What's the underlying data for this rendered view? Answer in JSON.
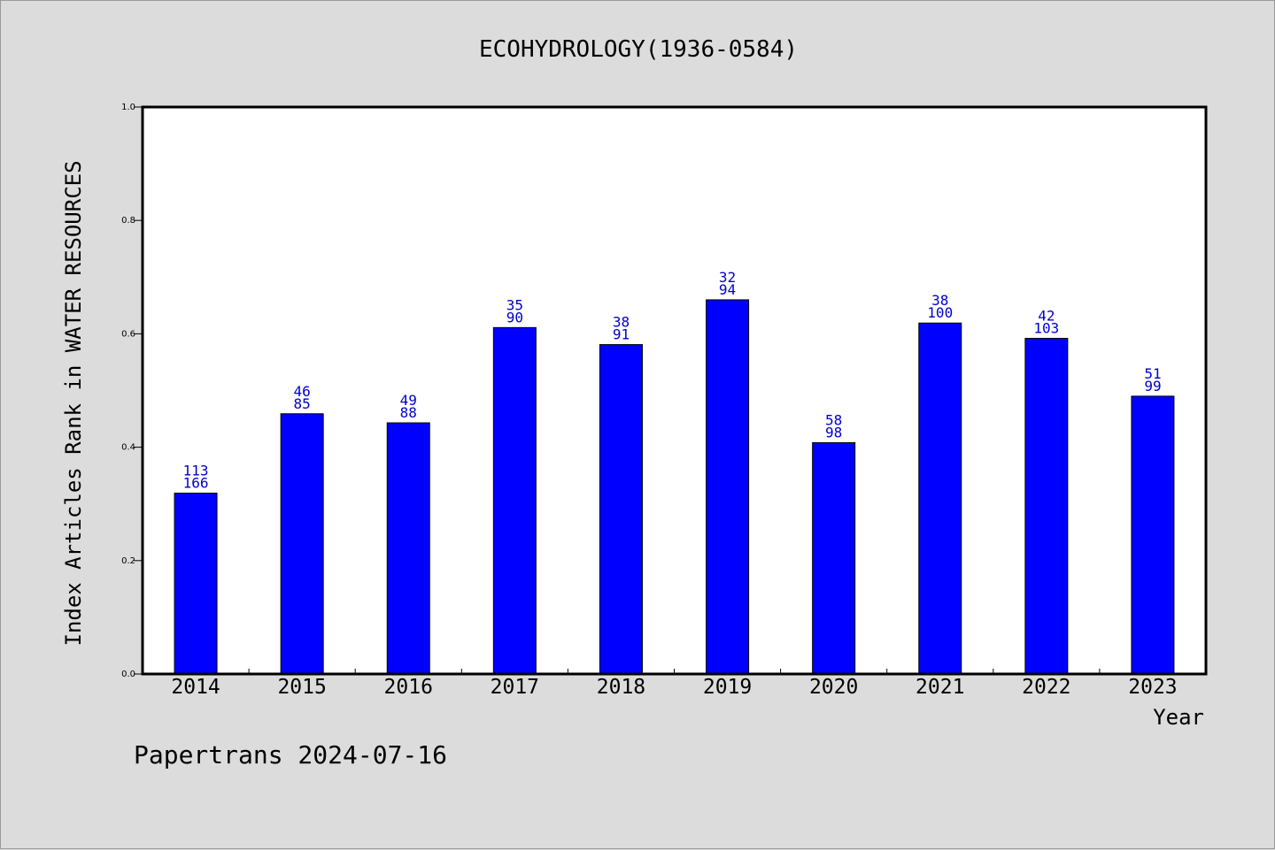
{
  "chart_data": {
    "type": "bar",
    "title": "ECOHYDROLOGY(1936-0584)",
    "xlabel": "Year",
    "ylabel": "Index Articles Rank in WATER RESOURCES",
    "categories": [
      "2014",
      "2015",
      "2016",
      "2017",
      "2018",
      "2019",
      "2020",
      "2021",
      "2022",
      "2023"
    ],
    "values": [
      0.319,
      0.459,
      0.443,
      0.611,
      0.581,
      0.66,
      0.408,
      0.619,
      0.592,
      0.49
    ],
    "label_top": [
      "113",
      "46",
      "49",
      "35",
      "38",
      "32",
      "58",
      "38",
      "42",
      "51"
    ],
    "label_bottom": [
      "166",
      "85",
      "88",
      "90",
      "91",
      "94",
      "98",
      "100",
      "103",
      "99"
    ],
    "ylim": [
      0,
      1.0
    ],
    "yticks": [
      0.0,
      0.2,
      0.4,
      0.6,
      0.8,
      1.0
    ],
    "ytick_labels": [
      "0.0",
      "0.2",
      "0.4",
      "0.6",
      "0.8",
      "1.0"
    ],
    "grid": false,
    "bar_color": "#0000ff",
    "label_color": "#0000cc",
    "background_color": "#dcdcdc",
    "plot_background_color": "#ffffff"
  },
  "footer": "Papertrans 2024-07-16"
}
